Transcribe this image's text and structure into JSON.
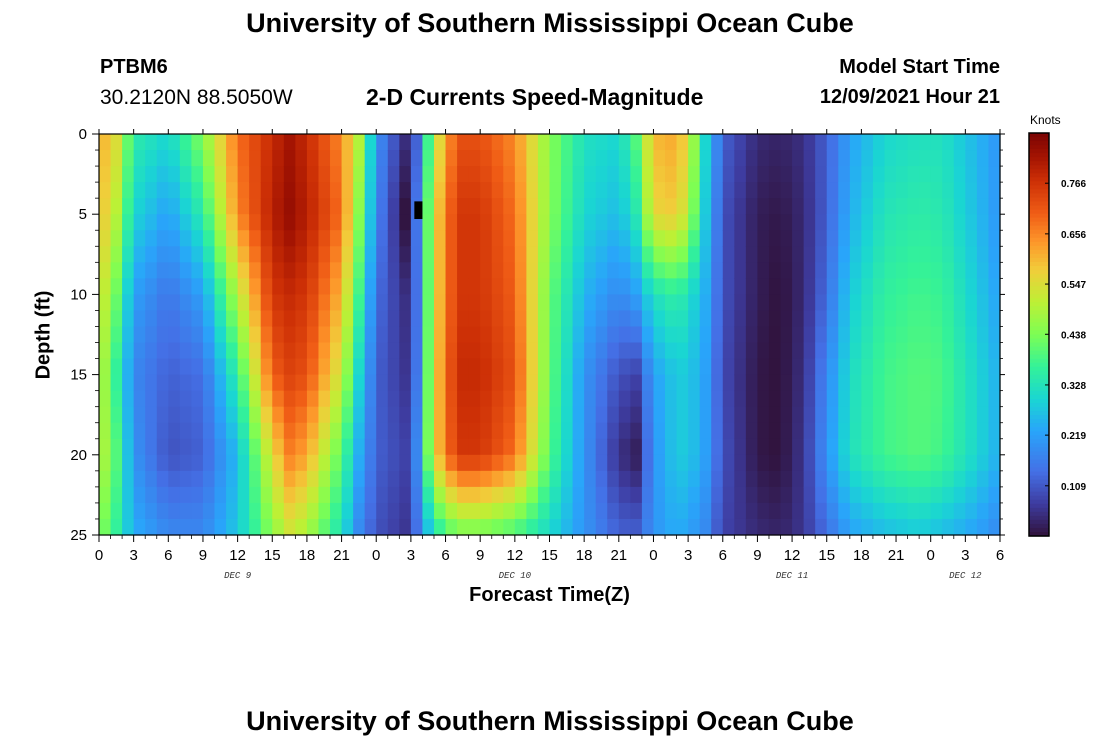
{
  "header": {
    "title": "University of Southern Mississippi Ocean Cube",
    "station": "PTBM6",
    "coords": "30.2120N  88.5050W",
    "subtitle": "2-D Currents Speed-Magnitude",
    "model_start_label": "Model Start Time",
    "model_start_value": "12/09/2021 Hour 21"
  },
  "footer": {
    "title": "University of Southern Mississippi Ocean Cube"
  },
  "chart_data": {
    "type": "heatmap",
    "title": "2-D Currents Speed-Magnitude",
    "xlabel": "Forecast Time(Z)",
    "ylabel": "Depth (ft)",
    "x_tick_labels": [
      "0",
      "3",
      "6",
      "9",
      "12",
      "15",
      "18",
      "21",
      "0",
      "3",
      "6",
      "9",
      "12",
      "15",
      "18",
      "21",
      "0",
      "3",
      "6",
      "9",
      "12",
      "15",
      "18",
      "21",
      "0",
      "3",
      "6"
    ],
    "x_range_hours": [
      0,
      78
    ],
    "day_labels": [
      {
        "label": "DEC 9",
        "hour": 12
      },
      {
        "label": "DEC 10",
        "hour": 36
      },
      {
        "label": "DEC 11",
        "hour": 60
      },
      {
        "label": "DEC 12",
        "hour": 75
      }
    ],
    "y_ticks": [
      0,
      5,
      10,
      15,
      20,
      25
    ],
    "y_range": [
      0,
      25
    ],
    "y_inverted": true,
    "colorbar": {
      "title": "Knots",
      "ticks": [
        "0.766",
        "0.656",
        "0.547",
        "0.438",
        "0.328",
        "0.219",
        "0.109"
      ],
      "tick_values": [
        0.766,
        0.656,
        0.547,
        0.438,
        0.328,
        0.219,
        0.109
      ],
      "range": [
        0,
        0.875
      ],
      "colormap": "turbo"
    },
    "time_samples_hours": [
      0,
      1.5,
      3,
      6,
      9,
      12,
      15,
      16.5,
      18,
      21,
      22.5,
      24,
      26.5,
      27.5,
      29,
      31,
      33,
      36,
      39,
      42,
      45,
      46.5,
      48,
      50,
      51,
      52.5,
      54,
      57,
      59,
      61,
      63,
      65,
      68,
      71,
      73,
      76,
      78
    ],
    "depth_samples_ft": [
      0,
      5,
      10,
      15,
      20,
      25
    ],
    "speed_knots_by_depth": [
      [
        0.62,
        0.55,
        0.35,
        0.3,
        0.45,
        0.68,
        0.78,
        0.82,
        0.78,
        0.65,
        0.5,
        0.2,
        0.05,
        0.12,
        0.5,
        0.72,
        0.72,
        0.65,
        0.45,
        0.32,
        0.3,
        0.4,
        0.6,
        0.62,
        0.55,
        0.3,
        0.12,
        0.04,
        0.03,
        0.05,
        0.12,
        0.22,
        0.3,
        0.32,
        0.32,
        0.25,
        0.2
      ],
      [
        0.6,
        0.5,
        0.3,
        0.22,
        0.35,
        0.65,
        0.8,
        0.84,
        0.8,
        0.68,
        0.45,
        0.18,
        0.0,
        0.15,
        0.55,
        0.76,
        0.76,
        0.68,
        0.45,
        0.3,
        0.26,
        0.34,
        0.56,
        0.58,
        0.5,
        0.28,
        0.1,
        0.02,
        0.01,
        0.04,
        0.12,
        0.24,
        0.33,
        0.35,
        0.34,
        0.26,
        0.2
      ],
      [
        0.55,
        0.42,
        0.22,
        0.15,
        0.22,
        0.5,
        0.76,
        0.78,
        0.76,
        0.6,
        0.38,
        0.14,
        0.05,
        0.14,
        0.55,
        0.76,
        0.76,
        0.7,
        0.42,
        0.25,
        0.18,
        0.22,
        0.32,
        0.36,
        0.32,
        0.24,
        0.1,
        0.02,
        0.0,
        0.04,
        0.14,
        0.28,
        0.36,
        0.38,
        0.37,
        0.28,
        0.22
      ],
      [
        0.52,
        0.36,
        0.18,
        0.12,
        0.14,
        0.36,
        0.7,
        0.74,
        0.72,
        0.52,
        0.3,
        0.12,
        0.06,
        0.15,
        0.56,
        0.78,
        0.78,
        0.72,
        0.42,
        0.2,
        0.1,
        0.08,
        0.22,
        0.28,
        0.28,
        0.22,
        0.09,
        0.01,
        0.0,
        0.05,
        0.18,
        0.31,
        0.38,
        0.4,
        0.39,
        0.3,
        0.24
      ],
      [
        0.52,
        0.4,
        0.2,
        0.1,
        0.12,
        0.26,
        0.55,
        0.66,
        0.62,
        0.4,
        0.24,
        0.12,
        0.08,
        0.18,
        0.56,
        0.76,
        0.76,
        0.68,
        0.4,
        0.2,
        0.05,
        0.02,
        0.2,
        0.28,
        0.28,
        0.22,
        0.1,
        0.01,
        0.0,
        0.06,
        0.2,
        0.32,
        0.38,
        0.4,
        0.38,
        0.3,
        0.24
      ],
      [
        0.45,
        0.36,
        0.24,
        0.18,
        0.18,
        0.28,
        0.45,
        0.52,
        0.48,
        0.32,
        0.18,
        0.1,
        0.06,
        0.14,
        0.32,
        0.42,
        0.42,
        0.38,
        0.3,
        0.2,
        0.12,
        0.12,
        0.2,
        0.24,
        0.22,
        0.18,
        0.08,
        0.04,
        0.03,
        0.06,
        0.14,
        0.22,
        0.26,
        0.28,
        0.26,
        0.22,
        0.18
      ]
    ],
    "annotations": [
      "minimum-marker at about hour 27.5, depth 5 ft"
    ]
  }
}
